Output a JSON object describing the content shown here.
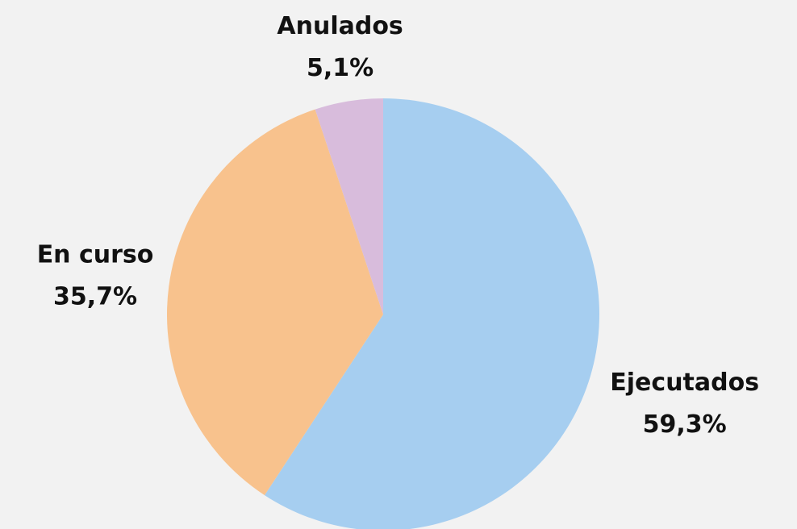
{
  "chart_data": {
    "type": "pie",
    "categories": [
      "Ejecutados",
      "En curso",
      "Anulados"
    ],
    "values": [
      59.3,
      35.7,
      5.1
    ],
    "value_labels": [
      "59,3%",
      "35,7%",
      "5,1%"
    ],
    "colors": [
      "#a6cef0",
      "#f8c28d",
      "#d8bcdc"
    ]
  }
}
